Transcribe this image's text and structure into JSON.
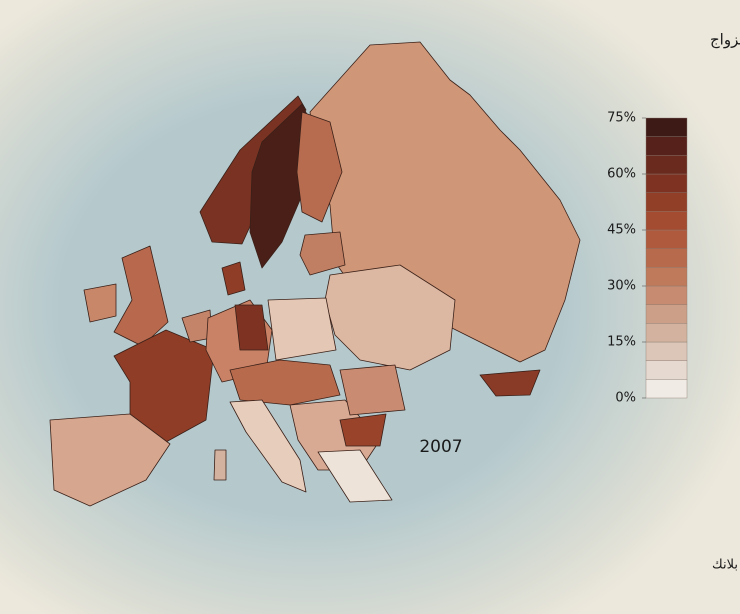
{
  "title": "نسبة الأطفال المولودين خارج إطار الزواج",
  "year": "2007",
  "source": "المصدر : مؤسسات الإحصاء وحساباتٌ خاصة بهيئة ماكس بلانك",
  "legend": {
    "bins": [
      0,
      5,
      10,
      15,
      20,
      25,
      30,
      35,
      40,
      45,
      50,
      55,
      60,
      65,
      70,
      75
    ],
    "colors": [
      "#f0ebe4",
      "#e6d9cf",
      "#dcc6b8",
      "#d3b3a0",
      "#cc9f88",
      "#c68b71",
      "#bf7a5c",
      "#b86a4c",
      "#b05a3d",
      "#a44c31",
      "#923f28",
      "#7e3322",
      "#6b2a1e",
      "#56211a",
      "#3e1a16"
    ],
    "ticks": [
      {
        "value": 0,
        "label": "0%"
      },
      {
        "value": 15,
        "label": "15%"
      },
      {
        "value": 30,
        "label": "30%"
      },
      {
        "value": 45,
        "label": "45%"
      },
      {
        "value": 60,
        "label": "60%"
      },
      {
        "value": 75,
        "label": "75%"
      }
    ]
  }
}
